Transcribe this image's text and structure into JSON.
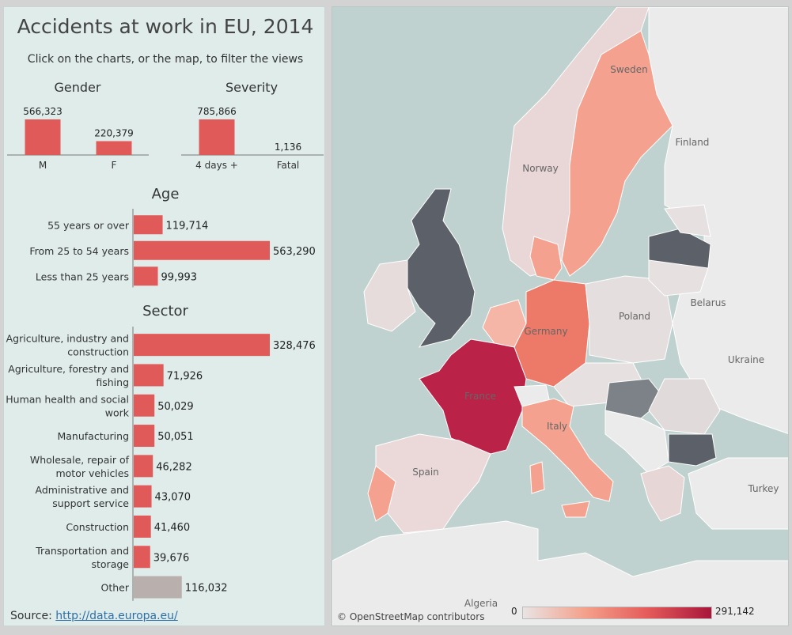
{
  "title": "Accidents at work in EU, 2014",
  "subtitle": "Click on the charts, or the map, to filter the views",
  "source": {
    "label": "Source: ",
    "link": "http://data.europa.eu/"
  },
  "colors": {
    "bar": "#e05a5a",
    "other": "#b9b0ae",
    "panel": "#dfecea"
  },
  "chart_data": [
    {
      "type": "bar",
      "title": "Gender",
      "categories": [
        "M",
        "F"
      ],
      "values": [
        566323,
        220379
      ],
      "labels": [
        "566,323",
        "220,379"
      ]
    },
    {
      "type": "bar",
      "title": "Severity",
      "categories": [
        "4 days +",
        "Fatal"
      ],
      "values": [
        785866,
        1136
      ],
      "labels": [
        "785,866",
        "1,136"
      ]
    },
    {
      "type": "bar",
      "orientation": "horizontal",
      "title": "Age",
      "categories": [
        "55 years or over",
        "From 25 to 54 years",
        "Less than 25 years"
      ],
      "values": [
        119714,
        563290,
        99993
      ],
      "labels": [
        "119,714",
        "563,290",
        "99,993"
      ]
    },
    {
      "type": "bar",
      "orientation": "horizontal",
      "title": "Sector",
      "categories": [
        [
          "Agriculture, industry and",
          "construction"
        ],
        [
          "Agriculture, forestry and",
          "fishing"
        ],
        [
          "Human health and social",
          "work"
        ],
        [
          "Manufacturing"
        ],
        [
          "Wholesale, repair of",
          "motor vehicles"
        ],
        [
          "Administrative and",
          "support service"
        ],
        [
          "Construction"
        ],
        [
          "Transportation and",
          "storage"
        ],
        [
          "Other"
        ]
      ],
      "values": [
        328476,
        71926,
        50029,
        50051,
        46282,
        43070,
        41460,
        39676,
        116032
      ],
      "labels": [
        "328,476",
        "71,926",
        "50,029",
        "50,051",
        "46,282",
        "43,070",
        "41,460",
        "39,676",
        "116,032"
      ]
    }
  ],
  "map": {
    "credit": "© OpenStreetMap contributors",
    "legend": {
      "min": "0",
      "max": "291,142"
    },
    "place_labels": [
      {
        "text": "Sweden"
      },
      {
        "text": "Finland"
      },
      {
        "text": "Norway"
      },
      {
        "text": "Belarus"
      },
      {
        "text": "Poland"
      },
      {
        "text": "Germany"
      },
      {
        "text": "Ukraine"
      },
      {
        "text": "France"
      },
      {
        "text": "Italy"
      },
      {
        "text": "Spain"
      },
      {
        "text": "Turkey"
      },
      {
        "text": "Algeria"
      }
    ]
  }
}
